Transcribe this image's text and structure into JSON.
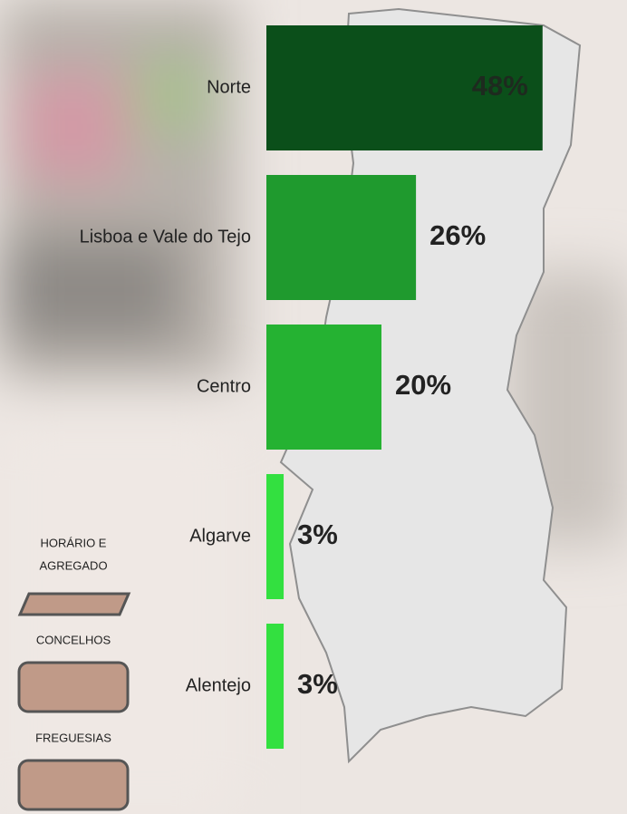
{
  "chart_data": {
    "type": "hbar",
    "categories": [
      "Norte",
      "Lisboa e Vale do Tejo",
      "Centro",
      "Algarve",
      "Alentejo"
    ],
    "values": [
      48,
      26,
      20,
      3,
      3
    ],
    "value_labels": [
      "48%",
      "26%",
      "20%",
      "3%",
      "3%"
    ],
    "colors": [
      "#0b4f1a",
      "#1f9a2e",
      "#25b232",
      "#33e040",
      "#33e040"
    ]
  },
  "controls": [
    {
      "label": [
        "HORÁRIO E",
        "AGREGADO"
      ]
    },
    {
      "label": [
        "CONCELHOS"
      ]
    },
    {
      "label": [
        "FREGUESIAS"
      ]
    }
  ]
}
